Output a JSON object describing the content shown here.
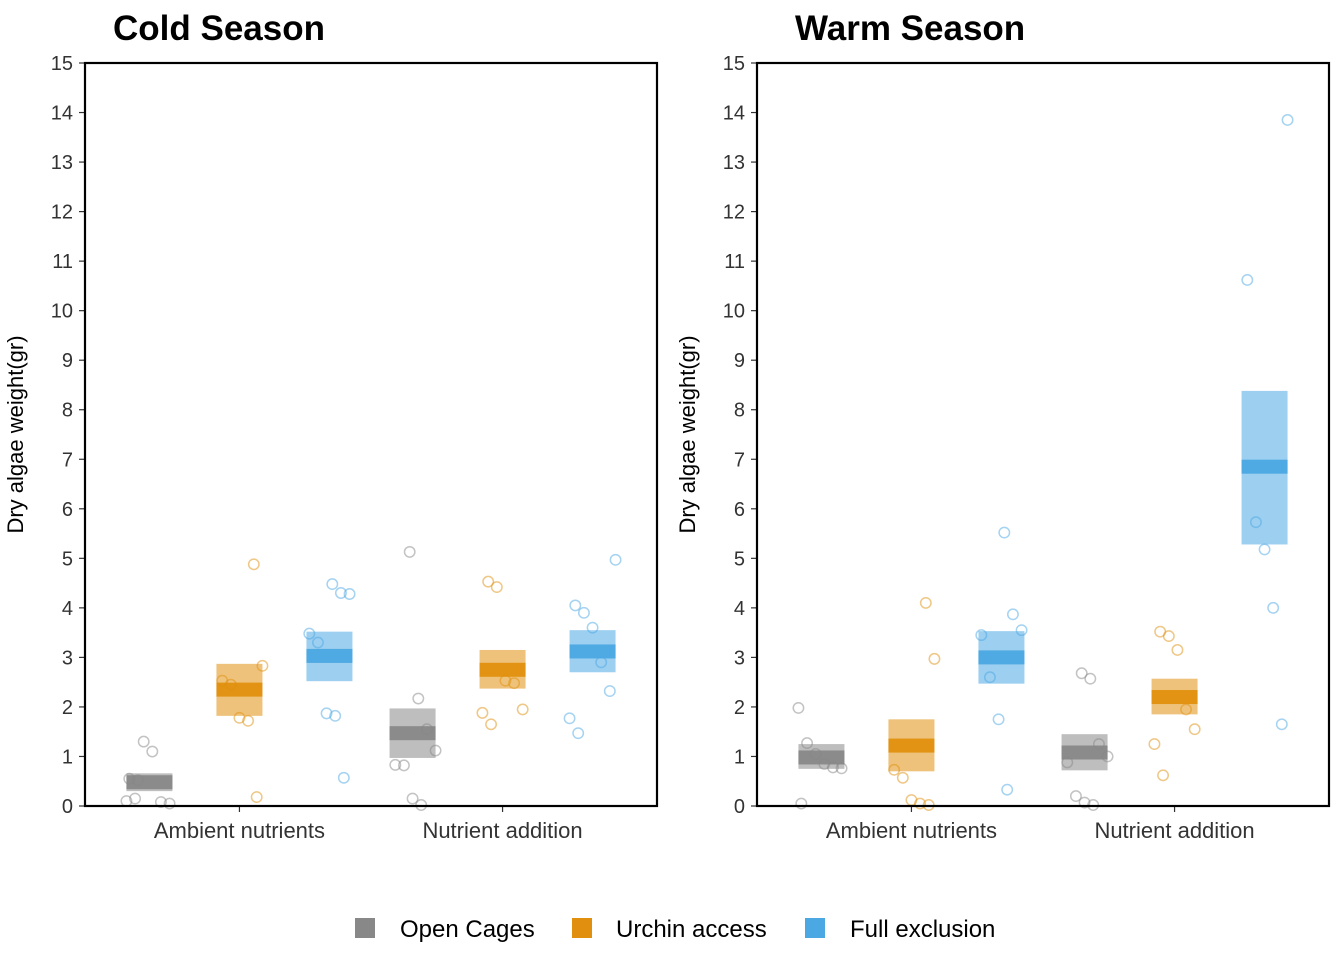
{
  "colors": {
    "open_cages": "#888888",
    "urchin_access": "#E0900E",
    "full_exclusion": "#4BA8E3",
    "axis": "#000000",
    "tick_text": "#333333"
  },
  "legend": {
    "items": [
      {
        "label": "Open Cages",
        "color": "#888888"
      },
      {
        "label": "Urchin access",
        "color": "#E0900E"
      },
      {
        "label": "Full exclusion",
        "color": "#4BA8E3"
      }
    ],
    "position": "bottom"
  },
  "chart_data": [
    {
      "type": "scatter",
      "title": "Cold Season",
      "xlabel": "",
      "ylabel": "Dry algae weight(gr)",
      "ylim": [
        0,
        15
      ],
      "yticks": [
        0,
        1,
        2,
        3,
        4,
        5,
        6,
        7,
        8,
        9,
        10,
        11,
        12,
        13,
        14,
        15
      ],
      "grid": false,
      "categories": [
        "Ambient nutrients",
        "Nutrient addition"
      ],
      "series": [
        {
          "name": "Open Cages",
          "color": "#888888",
          "groups": [
            {
              "mean": 0.48,
              "lower": 0.3,
              "upper": 0.66,
              "points": [
                0.1,
                0.15,
                1.3,
                1.1,
                0.08,
                0.05,
                0.55,
                0.52
              ]
            },
            {
              "mean": 1.47,
              "lower": 0.97,
              "upper": 1.97,
              "points": [
                5.13,
                2.17,
                1.55,
                1.12,
                0.83,
                0.82,
                0.15,
                0.02
              ]
            }
          ]
        },
        {
          "name": "Urchin access",
          "color": "#E0900E",
          "groups": [
            {
              "mean": 2.35,
              "lower": 1.82,
              "upper": 2.87,
              "points": [
                4.88,
                2.83,
                2.53,
                2.45,
                1.78,
                1.72,
                0.18
              ]
            },
            {
              "mean": 2.75,
              "lower": 2.37,
              "upper": 3.15,
              "points": [
                4.53,
                4.42,
                2.53,
                2.48,
                1.95,
                1.88,
                1.65
              ]
            }
          ]
        },
        {
          "name": "Full exclusion",
          "color": "#4BA8E3",
          "groups": [
            {
              "mean": 3.03,
              "lower": 2.52,
              "upper": 3.52,
              "points": [
                4.48,
                4.3,
                4.28,
                3.48,
                3.3,
                1.87,
                1.82,
                0.57
              ]
            },
            {
              "mean": 3.12,
              "lower": 2.7,
              "upper": 3.55,
              "points": [
                4.97,
                4.05,
                3.9,
                3.6,
                2.9,
                2.32,
                1.77,
                1.47
              ]
            }
          ]
        }
      ]
    },
    {
      "type": "scatter",
      "title": "Warm Season",
      "xlabel": "",
      "ylabel": "Dry algae weight(gr)",
      "ylim": [
        0,
        15
      ],
      "yticks": [
        0,
        1,
        2,
        3,
        4,
        5,
        6,
        7,
        8,
        9,
        10,
        11,
        12,
        13,
        14,
        15
      ],
      "grid": false,
      "categories": [
        "Ambient nutrients",
        "Nutrient addition"
      ],
      "series": [
        {
          "name": "Open Cages",
          "color": "#888888",
          "groups": [
            {
              "mean": 0.98,
              "lower": 0.75,
              "upper": 1.25,
              "points": [
                1.98,
                1.27,
                1.05,
                0.85,
                0.78,
                0.76,
                0.05
              ]
            },
            {
              "mean": 1.08,
              "lower": 0.72,
              "upper": 1.45,
              "points": [
                2.68,
                2.57,
                1.25,
                1.0,
                0.88,
                0.2,
                0.07,
                0.02
              ]
            }
          ]
        },
        {
          "name": "Urchin access",
          "color": "#E0900E",
          "groups": [
            {
              "mean": 1.22,
              "lower": 0.7,
              "upper": 1.75,
              "points": [
                4.1,
                2.97,
                0.73,
                0.57,
                0.12,
                0.05,
                0.02
              ]
            },
            {
              "mean": 2.2,
              "lower": 1.85,
              "upper": 2.57,
              "points": [
                3.52,
                3.43,
                3.15,
                1.95,
                1.55,
                1.25,
                0.62
              ]
            }
          ]
        },
        {
          "name": "Full exclusion",
          "color": "#4BA8E3",
          "groups": [
            {
              "mean": 3.0,
              "lower": 2.47,
              "upper": 3.53,
              "points": [
                5.52,
                3.87,
                3.55,
                3.45,
                2.6,
                1.75,
                0.33
              ]
            },
            {
              "mean": 6.85,
              "lower": 5.28,
              "upper": 8.38,
              "points": [
                13.85,
                10.62,
                5.73,
                5.18,
                4.0,
                1.65
              ]
            }
          ]
        }
      ]
    }
  ]
}
